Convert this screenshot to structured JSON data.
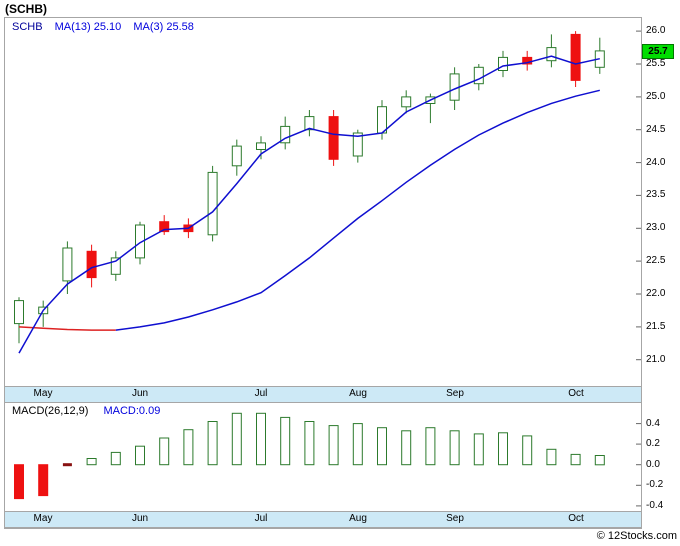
{
  "header": {
    "title": "(SCHB)"
  },
  "legend": {
    "symbol": "SCHB",
    "ma13_text": "MA(13)  25.10",
    "ma3_text": "MA(3)  25.58"
  },
  "macd": {
    "label": "MACD(26,12,9)",
    "value": "MACD:0.09"
  },
  "footer": {
    "copyright": "© 12Stocks.com"
  },
  "colors": {
    "candle_up": "#2c7a2c",
    "candle_down": "#ee1111",
    "ma_blue": "#0f0fd0",
    "ma_red": "#dd2222",
    "macd_zero_dash": "#881111",
    "band_bg": "#cde9f6",
    "badge_bg": "#00dd00",
    "legend_blue": "#0000dd"
  },
  "chart_data": [
    {
      "type": "candlestick",
      "title": "SCHB weekly price",
      "ylim": [
        20.6,
        26.2
      ],
      "yticks": [
        26.0,
        25.5,
        25.0,
        24.5,
        24.0,
        23.5,
        23.0,
        22.5,
        22.0,
        21.5,
        21.0
      ],
      "last_price": "25.7",
      "months": [
        {
          "label": "May",
          "index": 1
        },
        {
          "label": "Jun",
          "index": 5
        },
        {
          "label": "Jul",
          "index": 10
        },
        {
          "label": "Aug",
          "index": 14
        },
        {
          "label": "Sep",
          "index": 18
        },
        {
          "label": "Oct",
          "index": 23
        }
      ],
      "candles": [
        [
          21.55,
          21.95,
          21.25,
          21.9
        ],
        [
          21.7,
          21.9,
          21.5,
          21.8
        ],
        [
          22.2,
          22.8,
          22.0,
          22.7
        ],
        [
          22.65,
          22.75,
          22.1,
          22.25
        ],
        [
          22.3,
          22.65,
          22.2,
          22.55
        ],
        [
          22.55,
          23.1,
          22.45,
          23.05
        ],
        [
          23.1,
          23.2,
          22.9,
          22.95
        ],
        [
          23.05,
          23.15,
          22.85,
          22.95
        ],
        [
          22.9,
          23.95,
          22.8,
          23.85
        ],
        [
          23.95,
          24.35,
          23.8,
          24.25
        ],
        [
          24.2,
          24.4,
          24.05,
          24.3
        ],
        [
          24.3,
          24.7,
          24.2,
          24.55
        ],
        [
          24.5,
          24.8,
          24.4,
          24.7
        ],
        [
          24.7,
          24.8,
          23.95,
          24.05
        ],
        [
          24.1,
          24.5,
          24.0,
          24.45
        ],
        [
          24.45,
          24.95,
          24.35,
          24.85
        ],
        [
          24.85,
          25.1,
          24.75,
          25.0
        ],
        [
          24.9,
          25.05,
          24.6,
          25.0
        ],
        [
          24.95,
          25.45,
          24.8,
          25.35
        ],
        [
          25.2,
          25.5,
          25.1,
          25.45
        ],
        [
          25.4,
          25.7,
          25.3,
          25.6
        ],
        [
          25.6,
          25.7,
          25.4,
          25.5
        ],
        [
          25.55,
          25.95,
          25.45,
          25.75
        ],
        [
          25.95,
          26.0,
          25.15,
          25.25
        ],
        [
          25.45,
          25.9,
          25.35,
          25.7
        ]
      ],
      "series": [
        {
          "name": "MA(3)",
          "current": 25.58,
          "values": [
            21.1,
            21.75,
            22.15,
            22.4,
            22.5,
            22.78,
            22.98,
            23.0,
            23.25,
            23.68,
            24.13,
            24.37,
            24.52,
            24.43,
            24.4,
            24.45,
            24.77,
            24.95,
            25.12,
            25.27,
            25.47,
            25.52,
            25.62,
            25.5,
            25.58
          ]
        },
        {
          "name": "MA(13)",
          "current": 25.1,
          "red_segment_end": 4,
          "values": [
            21.5,
            21.48,
            21.46,
            21.45,
            21.45,
            21.5,
            21.56,
            21.65,
            21.76,
            21.88,
            22.02,
            22.28,
            22.55,
            22.85,
            23.15,
            23.42,
            23.7,
            23.96,
            24.2,
            24.42,
            24.6,
            24.76,
            24.9,
            25.01,
            25.1
          ]
        }
      ]
    },
    {
      "type": "bar",
      "title": "MACD(26,12,9)",
      "current": 0.09,
      "ylim": [
        -0.45,
        0.6
      ],
      "yticks": [
        0.4,
        0.2,
        0.0,
        -0.2,
        -0.4
      ],
      "values": [
        -0.33,
        -0.3,
        -0.01,
        0.06,
        0.12,
        0.18,
        0.26,
        0.34,
        0.42,
        0.5,
        0.5,
        0.46,
        0.42,
        0.38,
        0.4,
        0.36,
        0.33,
        0.36,
        0.33,
        0.3,
        0.31,
        0.28,
        0.15,
        0.1,
        0.09
      ]
    }
  ]
}
